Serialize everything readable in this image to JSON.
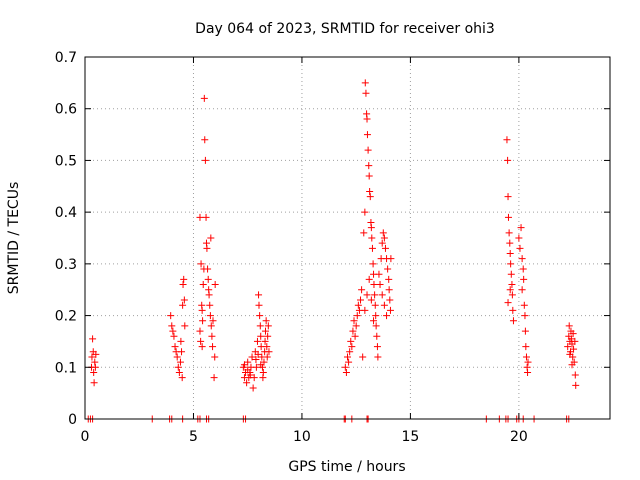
{
  "chart_data": {
    "type": "scatter",
    "title": "Day 064 of 2023, SRMTID for receiver ohi3",
    "xlabel": "GPS time / hours",
    "ylabel": "SRMTID / TECUs",
    "xlim": [
      0,
      24.2
    ],
    "ylim": [
      0,
      0.7
    ],
    "xticks": [
      0,
      5,
      10,
      15,
      20
    ],
    "yticks": [
      0,
      0.1,
      0.2,
      0.3,
      0.4,
      0.5,
      0.6,
      0.7
    ],
    "grid": true,
    "marker": "+",
    "color": "#ff0000",
    "series": [
      {
        "name": "SRMTID",
        "points": [
          [
            0.15,
            0
          ],
          [
            0.25,
            0
          ],
          [
            0.35,
            0
          ],
          [
            0.3,
            0.1
          ],
          [
            0.32,
            0.12
          ],
          [
            0.35,
            0.155
          ],
          [
            0.38,
            0.13
          ],
          [
            0.4,
            0.09
          ],
          [
            0.42,
            0.07
          ],
          [
            0.45,
            0.11
          ],
          [
            0.48,
            0.1
          ],
          [
            0.5,
            0.125
          ],
          [
            3.1,
            0
          ],
          [
            3.9,
            0
          ],
          [
            4.0,
            0
          ],
          [
            4.5,
            0
          ],
          [
            5.2,
            0
          ],
          [
            5.3,
            0
          ],
          [
            5.6,
            0
          ],
          [
            5.7,
            0
          ],
          [
            7.3,
            0
          ],
          [
            7.4,
            0
          ],
          [
            3.95,
            0.2
          ],
          [
            4.0,
            0.18
          ],
          [
            4.05,
            0.17
          ],
          [
            4.1,
            0.16
          ],
          [
            4.15,
            0.14
          ],
          [
            4.2,
            0.13
          ],
          [
            4.25,
            0.12
          ],
          [
            4.3,
            0.1
          ],
          [
            4.35,
            0.09
          ],
          [
            4.4,
            0.11
          ],
          [
            4.42,
            0.15
          ],
          [
            4.45,
            0.13
          ],
          [
            4.48,
            0.08
          ],
          [
            4.5,
            0.22
          ],
          [
            4.52,
            0.26
          ],
          [
            4.55,
            0.27
          ],
          [
            4.58,
            0.23
          ],
          [
            4.6,
            0.18
          ],
          [
            5.3,
            0.39
          ],
          [
            5.35,
            0.3
          ],
          [
            5.38,
            0.22
          ],
          [
            5.4,
            0.21
          ],
          [
            5.45,
            0.26
          ],
          [
            5.48,
            0.29
          ],
          [
            5.5,
            0.62
          ],
          [
            5.52,
            0.54
          ],
          [
            5.55,
            0.5
          ],
          [
            5.58,
            0.39
          ],
          [
            5.6,
            0.34
          ],
          [
            5.62,
            0.33
          ],
          [
            5.65,
            0.29
          ],
          [
            5.68,
            0.27
          ],
          [
            5.7,
            0.25
          ],
          [
            5.72,
            0.24
          ],
          [
            5.75,
            0.22
          ],
          [
            5.78,
            0.2
          ],
          [
            5.8,
            0.35
          ],
          [
            5.82,
            0.18
          ],
          [
            5.85,
            0.16
          ],
          [
            5.88,
            0.14
          ],
          [
            5.9,
            0.19
          ],
          [
            5.95,
            0.08
          ],
          [
            5.98,
            0.12
          ],
          [
            6.0,
            0.26
          ],
          [
            5.3,
            0.17
          ],
          [
            5.33,
            0.15
          ],
          [
            5.4,
            0.14
          ],
          [
            5.42,
            0.19
          ],
          [
            7.3,
            0.1
          ],
          [
            7.35,
            0.08
          ],
          [
            7.4,
            0.09
          ],
          [
            7.45,
            0.07
          ],
          [
            7.5,
            0.11
          ],
          [
            7.55,
            0.08
          ],
          [
            7.6,
            0.09
          ],
          [
            7.65,
            0.1
          ],
          [
            7.7,
            0.12
          ],
          [
            7.75,
            0.06
          ],
          [
            7.8,
            0.08
          ],
          [
            7.85,
            0.13
          ],
          [
            7.9,
            0.1
          ],
          [
            7.95,
            0.15
          ],
          [
            8.0,
            0.24
          ],
          [
            8.02,
            0.22
          ],
          [
            8.05,
            0.2
          ],
          [
            8.08,
            0.18
          ],
          [
            8.1,
            0.16
          ],
          [
            8.12,
            0.14
          ],
          [
            8.15,
            0.12
          ],
          [
            8.18,
            0.1
          ],
          [
            8.2,
            0.08
          ],
          [
            8.22,
            0.09
          ],
          [
            8.25,
            0.11
          ],
          [
            8.28,
            0.13
          ],
          [
            8.3,
            0.15
          ],
          [
            8.32,
            0.17
          ],
          [
            8.35,
            0.19
          ],
          [
            8.38,
            0.14
          ],
          [
            8.4,
            0.12
          ],
          [
            8.42,
            0.16
          ],
          [
            8.45,
            0.18
          ],
          [
            8.48,
            0.13
          ],
          [
            7.35,
            0.105
          ],
          [
            7.5,
            0.095
          ],
          [
            7.62,
            0.085
          ],
          [
            7.88,
            0.115
          ],
          [
            7.98,
            0.125
          ],
          [
            8.1,
            0.105
          ],
          [
            11.95,
            0
          ],
          [
            12.0,
            0
          ],
          [
            12.3,
            0
          ],
          [
            13.0,
            0
          ],
          [
            13.05,
            0
          ],
          [
            12.0,
            0.1
          ],
          [
            12.05,
            0.09
          ],
          [
            12.1,
            0.12
          ],
          [
            12.15,
            0.11
          ],
          [
            12.2,
            0.13
          ],
          [
            12.25,
            0.15
          ],
          [
            12.3,
            0.14
          ],
          [
            12.35,
            0.17
          ],
          [
            12.4,
            0.19
          ],
          [
            12.45,
            0.16
          ],
          [
            12.5,
            0.18
          ],
          [
            12.55,
            0.2
          ],
          [
            12.6,
            0.22
          ],
          [
            12.65,
            0.21
          ],
          [
            12.7,
            0.23
          ],
          [
            12.75,
            0.25
          ],
          [
            12.8,
            0.12
          ],
          [
            12.85,
            0.36
          ],
          [
            12.9,
            0.4
          ],
          [
            12.92,
            0.65
          ],
          [
            12.95,
            0.63
          ],
          [
            12.98,
            0.59
          ],
          [
            13.0,
            0.58
          ],
          [
            13.02,
            0.55
          ],
          [
            13.05,
            0.52
          ],
          [
            13.08,
            0.49
          ],
          [
            13.1,
            0.47
          ],
          [
            13.12,
            0.44
          ],
          [
            13.15,
            0.43
          ],
          [
            13.18,
            0.38
          ],
          [
            13.2,
            0.37
          ],
          [
            13.22,
            0.35
          ],
          [
            13.25,
            0.33
          ],
          [
            13.28,
            0.3
          ],
          [
            13.3,
            0.28
          ],
          [
            13.32,
            0.26
          ],
          [
            13.35,
            0.24
          ],
          [
            13.38,
            0.22
          ],
          [
            13.4,
            0.2
          ],
          [
            13.42,
            0.18
          ],
          [
            13.45,
            0.16
          ],
          [
            13.48,
            0.14
          ],
          [
            13.5,
            0.12
          ],
          [
            13.55,
            0.28
          ],
          [
            13.6,
            0.26
          ],
          [
            13.65,
            0.31
          ],
          [
            13.7,
            0.34
          ],
          [
            13.75,
            0.36
          ],
          [
            13.8,
            0.35
          ],
          [
            13.85,
            0.33
          ],
          [
            13.9,
            0.31
          ],
          [
            13.95,
            0.29
          ],
          [
            14.0,
            0.27
          ],
          [
            14.02,
            0.25
          ],
          [
            14.05,
            0.23
          ],
          [
            14.08,
            0.21
          ],
          [
            14.1,
            0.31
          ],
          [
            13.7,
            0.24
          ],
          [
            13.8,
            0.22
          ],
          [
            13.9,
            0.2
          ],
          [
            12.9,
            0.21
          ],
          [
            13.0,
            0.24
          ],
          [
            13.1,
            0.27
          ],
          [
            13.2,
            0.23
          ],
          [
            13.3,
            0.19
          ],
          [
            18.5,
            0
          ],
          [
            19.1,
            0
          ],
          [
            19.4,
            0
          ],
          [
            19.5,
            0
          ],
          [
            19.9,
            0
          ],
          [
            20.0,
            0
          ],
          [
            20.2,
            0
          ],
          [
            20.7,
            0
          ],
          [
            19.45,
            0.54
          ],
          [
            19.48,
            0.5
          ],
          [
            19.5,
            0.43
          ],
          [
            19.52,
            0.39
          ],
          [
            19.55,
            0.36
          ],
          [
            19.58,
            0.34
          ],
          [
            19.6,
            0.32
          ],
          [
            19.62,
            0.3
          ],
          [
            19.65,
            0.28
          ],
          [
            19.68,
            0.26
          ],
          [
            19.7,
            0.24
          ],
          [
            19.72,
            0.21
          ],
          [
            19.75,
            0.19
          ],
          [
            19.5,
            0.225
          ],
          [
            19.6,
            0.25
          ],
          [
            20.0,
            0.35
          ],
          [
            20.05,
            0.33
          ],
          [
            20.1,
            0.37
          ],
          [
            20.15,
            0.31
          ],
          [
            20.2,
            0.29
          ],
          [
            20.22,
            0.27
          ],
          [
            20.25,
            0.22
          ],
          [
            20.28,
            0.2
          ],
          [
            20.3,
            0.17
          ],
          [
            20.32,
            0.14
          ],
          [
            20.35,
            0.12
          ],
          [
            20.38,
            0.1
          ],
          [
            20.4,
            0.09
          ],
          [
            20.42,
            0.11
          ],
          [
            20.15,
            0.25
          ],
          [
            22.2,
            0
          ],
          [
            22.3,
            0
          ],
          [
            22.25,
            0.14
          ],
          [
            22.3,
            0.16
          ],
          [
            22.32,
            0.18
          ],
          [
            22.35,
            0.15
          ],
          [
            22.38,
            0.13
          ],
          [
            22.4,
            0.17
          ],
          [
            22.42,
            0.155
          ],
          [
            22.45,
            0.145
          ],
          [
            22.48,
            0.12
          ],
          [
            22.5,
            0.165
          ],
          [
            22.52,
            0.135
          ],
          [
            22.55,
            0.11
          ],
          [
            22.58,
            0.15
          ],
          [
            22.6,
            0.085
          ],
          [
            22.62,
            0.065
          ],
          [
            22.35,
            0.125
          ],
          [
            22.45,
            0.105
          ]
        ]
      }
    ]
  }
}
